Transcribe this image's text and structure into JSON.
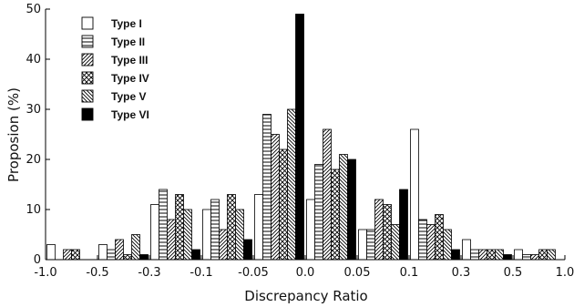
{
  "chart_data": {
    "type": "bar",
    "xlabel": "Discrepancy Ratio",
    "ylabel": "Proposion (%)",
    "ylim": [
      0,
      50
    ],
    "y_ticks": [
      0,
      10,
      20,
      30,
      40,
      50
    ],
    "x_tick_labels": [
      "-1.0",
      "-0.5",
      "-0.3",
      "-0.1",
      "-0.05",
      "0.0",
      "0.05",
      "0.1",
      "0.3",
      "0.5",
      "1.0"
    ],
    "bins": [
      "-1.0 ~ -0.5",
      "-0.5 ~ -0.3",
      "-0.3 ~ -0.1",
      "-0.1 ~ -0.05",
      "-0.05 ~ 0.0",
      "0.0 ~ 0.05",
      "0.05 ~ 0.1",
      "0.1 ~ 0.3",
      "0.3 ~ 0.5",
      "0.5 ~ 1.0"
    ],
    "legend_position": "top-left",
    "series": [
      {
        "name": "Type I",
        "pattern": "empty",
        "values": [
          3,
          3,
          11,
          10,
          13,
          12,
          6,
          26,
          4,
          2
        ]
      },
      {
        "name": "Type II",
        "pattern": "horizontal",
        "values": [
          0,
          2,
          14,
          12,
          29,
          19,
          6,
          8,
          2,
          1
        ]
      },
      {
        "name": "Type III",
        "pattern": "diagonal",
        "values": [
          2,
          4,
          8,
          6,
          25,
          26,
          12,
          7,
          2,
          1
        ]
      },
      {
        "name": "Type IV",
        "pattern": "crosshatch",
        "values": [
          2,
          1,
          13,
          13,
          22,
          18,
          11,
          9,
          2,
          2
        ]
      },
      {
        "name": "Type V",
        "pattern": "backslash",
        "values": [
          0,
          5,
          10,
          10,
          30,
          21,
          7,
          6,
          2,
          2
        ]
      },
      {
        "name": "Type VI",
        "pattern": "solid",
        "values": [
          0,
          1,
          2,
          4,
          49,
          20,
          14,
          2,
          1,
          0
        ]
      }
    ]
  }
}
